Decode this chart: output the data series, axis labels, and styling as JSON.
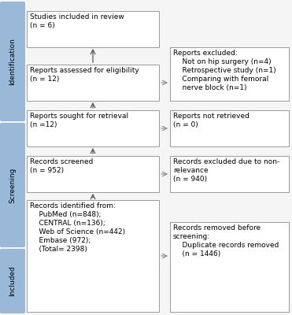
{
  "bg_color": "#f5f5f5",
  "box_edge_color": "#999999",
  "box_fill_color": "#ffffff",
  "sidebar_color": "#9ab8d8",
  "sidebar_labels": [
    "Identification",
    "Screening",
    "Included"
  ],
  "left_boxes": [
    {
      "label": "id_top",
      "text": "Records identified from:\n    PubMed (n=848);\n    CENTRAL (n=136);\n    Web of Science (n=442)\n    Embase (972);\n    (Total= 2398)",
      "fontsize": 6.5
    },
    {
      "label": "screened",
      "text": "Records screened\n(n = 952)",
      "fontsize": 6.5
    },
    {
      "label": "retrieval",
      "text": "Reports sought for retrieval\n(n =12)",
      "fontsize": 6.5
    },
    {
      "label": "eligibility",
      "text": "Reports assessed for eligibility\n(n = 12)",
      "fontsize": 6.5
    },
    {
      "label": "included",
      "text": "Studies included in review\n(n = 6)",
      "fontsize": 6.5
    }
  ],
  "right_boxes": [
    {
      "label": "removed",
      "text": "Records removed before\nscreening:\n    Duplicate records removed\n    (n = 1446)",
      "fontsize": 6.5
    },
    {
      "label": "excluded_relevance",
      "text": "Records excluded due to non-\nrelevance\n(n = 940)",
      "fontsize": 6.5
    },
    {
      "label": "not_retrieved",
      "text": "Reports not retrieved\n(n = 0)",
      "fontsize": 6.5
    },
    {
      "label": "excluded_reports",
      "text": "Reports excluded:\n    Not on hip surgery (n=4)\n    Retrospective study (n=1)\n    Comparing with femoral\n    nerve block (n=1)",
      "fontsize": 6.5
    }
  ]
}
